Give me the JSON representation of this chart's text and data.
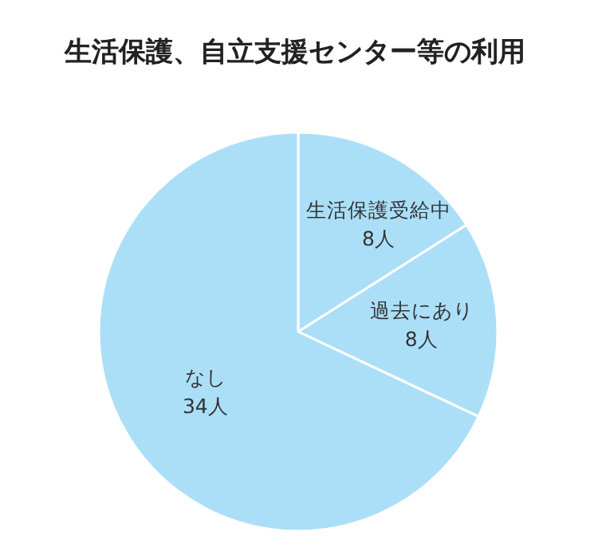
{
  "chart_data": {
    "type": "pie",
    "title": "生活保護、自立支援センター等の利用",
    "categories": [
      "生活保護受給中",
      "過去にあり",
      "なし"
    ],
    "values": [
      8,
      8,
      34
    ],
    "value_labels": [
      "8人",
      "8人",
      "34人"
    ],
    "colors": [
      "#abdff8",
      "#abdff8",
      "#abdff8"
    ]
  }
}
